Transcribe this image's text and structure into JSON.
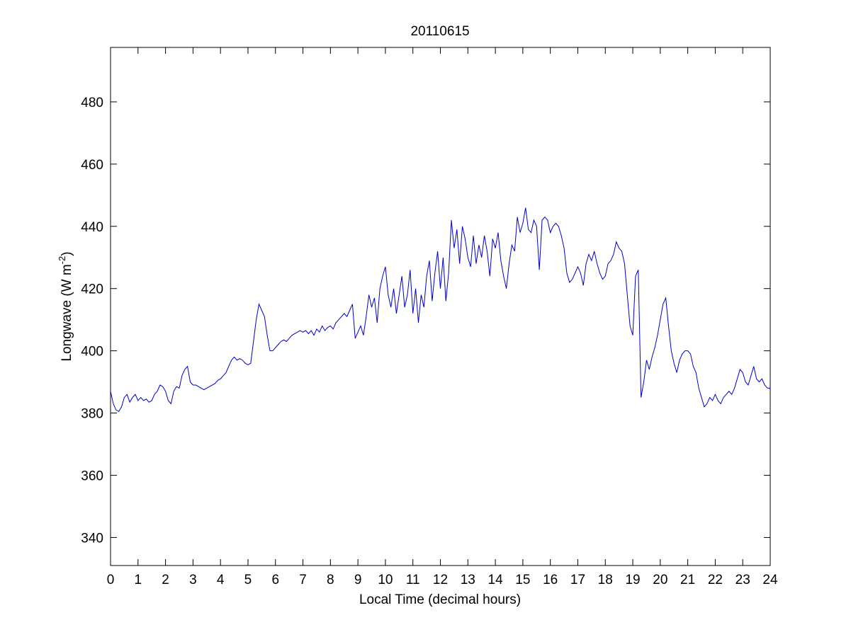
{
  "chart_data": {
    "type": "line",
    "title": "20110615",
    "xlabel": "Local Time (decimal hours)",
    "ylabel_parts": [
      "Longwave (W m",
      "-2",
      ")"
    ],
    "xlim": [
      0,
      24
    ],
    "ylim": [
      331,
      497.5
    ],
    "xticks": [
      0,
      1,
      2,
      3,
      4,
      5,
      6,
      7,
      8,
      9,
      10,
      11,
      12,
      13,
      14,
      15,
      16,
      17,
      18,
      19,
      20,
      21,
      22,
      23,
      24
    ],
    "yticks": [
      340,
      360,
      380,
      400,
      420,
      440,
      460,
      480
    ],
    "grid": false,
    "x": [
      0,
      0.1,
      0.2,
      0.3,
      0.4,
      0.5,
      0.6,
      0.7,
      0.8,
      0.9,
      1,
      1.1,
      1.2,
      1.3,
      1.4,
      1.5,
      1.6,
      1.7,
      1.8,
      1.9,
      2,
      2.1,
      2.2,
      2.3,
      2.4,
      2.5,
      2.6,
      2.7,
      2.8,
      2.9,
      3,
      3.1,
      3.2,
      3.3,
      3.4,
      3.5,
      3.6,
      3.7,
      3.8,
      3.9,
      4,
      4.1,
      4.2,
      4.3,
      4.4,
      4.5,
      4.6,
      4.7,
      4.8,
      4.9,
      5,
      5.1,
      5.2,
      5.3,
      5.4,
      5.5,
      5.6,
      5.7,
      5.8,
      5.9,
      6,
      6.1,
      6.2,
      6.3,
      6.4,
      6.5,
      6.6,
      6.7,
      6.8,
      6.9,
      7,
      7.1,
      7.2,
      7.3,
      7.4,
      7.5,
      7.6,
      7.7,
      7.8,
      7.9,
      8,
      8.1,
      8.2,
      8.3,
      8.4,
      8.5,
      8.6,
      8.7,
      8.8,
      8.9,
      9,
      9.1,
      9.2,
      9.3,
      9.4,
      9.5,
      9.6,
      9.7,
      9.8,
      9.9,
      10,
      10.1,
      10.2,
      10.3,
      10.4,
      10.5,
      10.6,
      10.7,
      10.8,
      10.9,
      11,
      11.1,
      11.2,
      11.3,
      11.4,
      11.5,
      11.6,
      11.7,
      11.8,
      11.9,
      12,
      12.1,
      12.2,
      12.3,
      12.4,
      12.5,
      12.6,
      12.7,
      12.8,
      12.9,
      13,
      13.1,
      13.2,
      13.3,
      13.4,
      13.5,
      13.6,
      13.7,
      13.8,
      13.9,
      14,
      14.1,
      14.2,
      14.3,
      14.4,
      14.5,
      14.6,
      14.7,
      14.8,
      14.9,
      15,
      15.1,
      15.2,
      15.3,
      15.4,
      15.5,
      15.6,
      15.7,
      15.8,
      15.9,
      16,
      16.1,
      16.2,
      16.3,
      16.4,
      16.5,
      16.6,
      16.7,
      16.8,
      16.9,
      17,
      17.1,
      17.2,
      17.3,
      17.4,
      17.5,
      17.6,
      17.7,
      17.8,
      17.9,
      18,
      18.1,
      18.2,
      18.3,
      18.4,
      18.5,
      18.6,
      18.7,
      18.8,
      18.9,
      19,
      19.1,
      19.2,
      19.3,
      19.4,
      19.5,
      19.6,
      19.7,
      19.8,
      19.9,
      20,
      20.1,
      20.2,
      20.3,
      20.4,
      20.5,
      20.6,
      20.7,
      20.8,
      20.9,
      21,
      21.1,
      21.2,
      21.3,
      21.4,
      21.5,
      21.6,
      21.7,
      21.8,
      21.9,
      22,
      22.1,
      22.2,
      22.3,
      22.4,
      22.5,
      22.6,
      22.7,
      22.8,
      22.9,
      23,
      23.1,
      23.2,
      23.3,
      23.4,
      23.5,
      23.6,
      23.7,
      23.8,
      23.9,
      24
    ],
    "series": [
      {
        "color": "#0000cc",
        "values": [
          387,
          383,
          381,
          380.5,
          382,
          385,
          386,
          383.5,
          385,
          386,
          384,
          385,
          384,
          384.5,
          383.5,
          384,
          386,
          387,
          389,
          388.5,
          387,
          384,
          383,
          387,
          388.5,
          388,
          392,
          394,
          395,
          390,
          389,
          389,
          388.5,
          388,
          387.5,
          388,
          388.5,
          389,
          389.5,
          390.5,
          391,
          392,
          393,
          395,
          397,
          398,
          397,
          397.5,
          397,
          396,
          395.5,
          396,
          403,
          410,
          415,
          413,
          411,
          405,
          400,
          400,
          401,
          402,
          403,
          403.5,
          403,
          404,
          405,
          405.5,
          406,
          406.5,
          406,
          406.5,
          405.5,
          406.5,
          405,
          407,
          406,
          408,
          406.5,
          407.5,
          408,
          407,
          409,
          410,
          411,
          412,
          411,
          413,
          415,
          404,
          406,
          408,
          405,
          411,
          418,
          414,
          417,
          409,
          420,
          424,
          427,
          418,
          414,
          420,
          412,
          418,
          424,
          414,
          418,
          426,
          412,
          420,
          409,
          418,
          414,
          424,
          429,
          416,
          425,
          432,
          420,
          430,
          416,
          425,
          442,
          433,
          439,
          428,
          440,
          436,
          430,
          427,
          437,
          428,
          434,
          430,
          437,
          432,
          424,
          436,
          433,
          438,
          429,
          424,
          420,
          428,
          434,
          432,
          443,
          438,
          441,
          446,
          439,
          438,
          442,
          440,
          426,
          442,
          443,
          442,
          438,
          440,
          441,
          440,
          437,
          433,
          425,
          422,
          423,
          425,
          427,
          425,
          421,
          428,
          431,
          429,
          432,
          428,
          425,
          423,
          424,
          428,
          429,
          431,
          435,
          433,
          432,
          428,
          418,
          408,
          405,
          424,
          426,
          385,
          390,
          397,
          394,
          398,
          401,
          405,
          410,
          415,
          417,
          408,
          400,
          396,
          393,
          397,
          399,
          400,
          400,
          399,
          395,
          393,
          388,
          385,
          382,
          383,
          385,
          384,
          386,
          384,
          383,
          385,
          386,
          387,
          386,
          388,
          391,
          394,
          393,
          390,
          389,
          392,
          395,
          391,
          390,
          391,
          389,
          388,
          388
        ]
      }
    ]
  }
}
